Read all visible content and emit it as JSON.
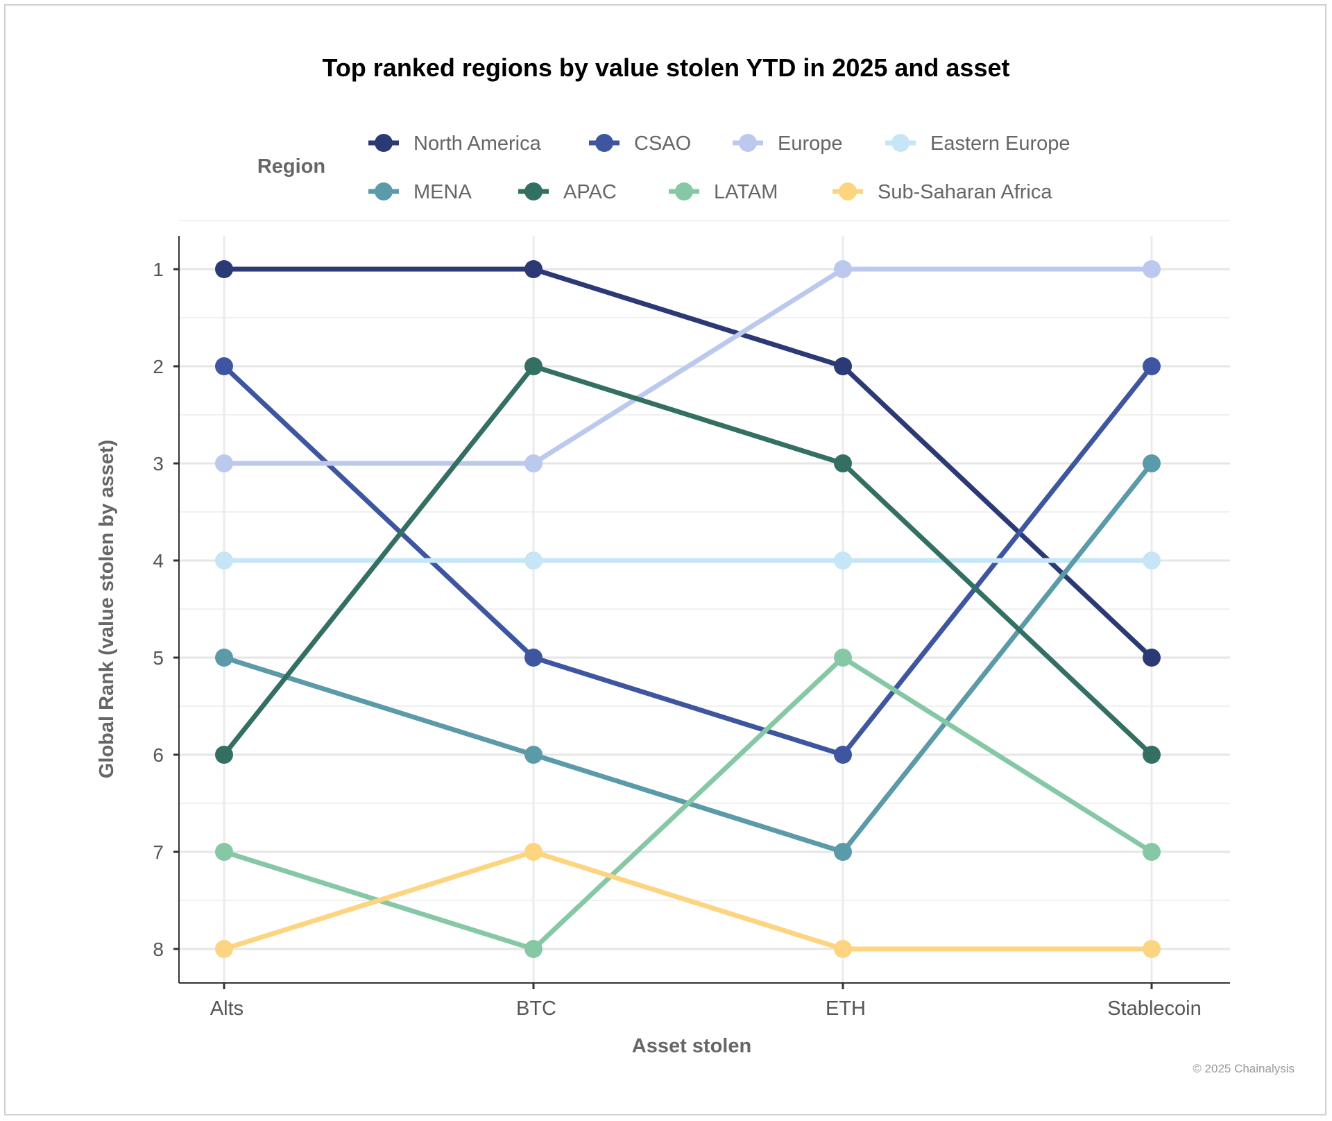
{
  "chart_data": {
    "type": "line",
    "title": "Top ranked regions by value stolen YTD in 2025 and asset",
    "xlabel": "Asset stolen",
    "ylabel": "Global Rank (value stolen by asset)",
    "categories": [
      "Alts",
      "BTC",
      "ETH",
      "Stablecoin"
    ],
    "y_ticks": [
      1,
      2,
      3,
      4,
      5,
      6,
      7,
      8
    ],
    "ylim": [
      8,
      1
    ],
    "y_reversed": true,
    "grid": true,
    "legend_title": "Region",
    "legend_placement": "top",
    "series": [
      {
        "name": "North America",
        "color": "#2b3a74",
        "values": [
          1,
          1,
          2,
          5
        ]
      },
      {
        "name": "CSAO",
        "color": "#3e56a0",
        "values": [
          2,
          5,
          6,
          2
        ]
      },
      {
        "name": "Europe",
        "color": "#bcc9ee",
        "values": [
          3,
          3,
          1,
          1
        ]
      },
      {
        "name": "Eastern Europe",
        "color": "#c6e6f7",
        "values": [
          4,
          4,
          4,
          4
        ]
      },
      {
        "name": "MENA",
        "color": "#5b9aa8",
        "values": [
          5,
          6,
          7,
          3
        ]
      },
      {
        "name": "APAC",
        "color": "#336f62",
        "values": [
          6,
          2,
          3,
          6
        ]
      },
      {
        "name": "LATAM",
        "color": "#86c8a5",
        "values": [
          7,
          8,
          5,
          7
        ]
      },
      {
        "name": "Sub-Saharan Africa",
        "color": "#fdd47f",
        "values": [
          8,
          7,
          8,
          8
        ]
      }
    ]
  },
  "footer": {
    "copyright": "© 2025 Chainalysis"
  }
}
